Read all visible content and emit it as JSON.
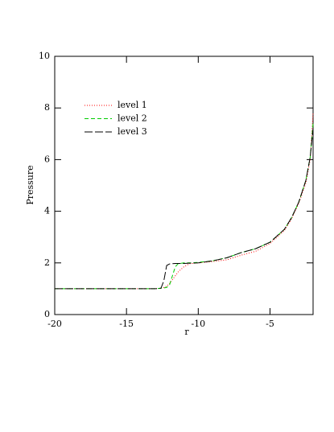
{
  "chart_data": {
    "type": "line",
    "x_label": "r",
    "y_label": "Pressure",
    "x": [
      -20,
      -13,
      -12.6,
      -12.4,
      -12.2,
      -12,
      -11.8,
      -11.6,
      -11.4,
      -11,
      -10.6,
      -10,
      -9,
      -8,
      -7,
      -6,
      -5,
      -4,
      -3.5,
      -3,
      -2.5,
      -2.2,
      -2
    ],
    "series": [
      {
        "name": "level 1",
        "color": "#ff0000",
        "dash": "1,2",
        "values": [
          1,
          1,
          1.02,
          1.05,
          1.1,
          1.2,
          1.35,
          1.5,
          1.65,
          1.85,
          1.97,
          2.0,
          2.05,
          2.12,
          2.3,
          2.45,
          2.75,
          3.25,
          3.7,
          4.3,
          5.1,
          6.0,
          7.8
        ]
      },
      {
        "name": "level 2",
        "color": "#00cc00",
        "dash": "5,3",
        "values": [
          1,
          1,
          1.02,
          1.03,
          1.05,
          1.15,
          1.5,
          1.85,
          1.97,
          2.0,
          2.0,
          2.02,
          2.08,
          2.2,
          2.4,
          2.55,
          2.8,
          3.3,
          3.75,
          4.35,
          5.2,
          6.1,
          7.4
        ]
      },
      {
        "name": "level 3",
        "color": "#000000",
        "dash": "10,3",
        "values": [
          1,
          1,
          1.02,
          1.3,
          1.9,
          1.96,
          1.97,
          1.98,
          1.98,
          1.98,
          1.99,
          2.0,
          2.08,
          2.2,
          2.4,
          2.55,
          2.8,
          3.3,
          3.75,
          4.35,
          5.2,
          6.1,
          7.2
        ]
      }
    ],
    "xlim": [
      -20,
      -2
    ],
    "xticks": [
      -20,
      -15,
      -10,
      -5
    ],
    "ylim": [
      0,
      10
    ],
    "yticks": [
      0,
      2,
      4,
      6,
      8,
      10
    ],
    "legend": "upper left"
  }
}
